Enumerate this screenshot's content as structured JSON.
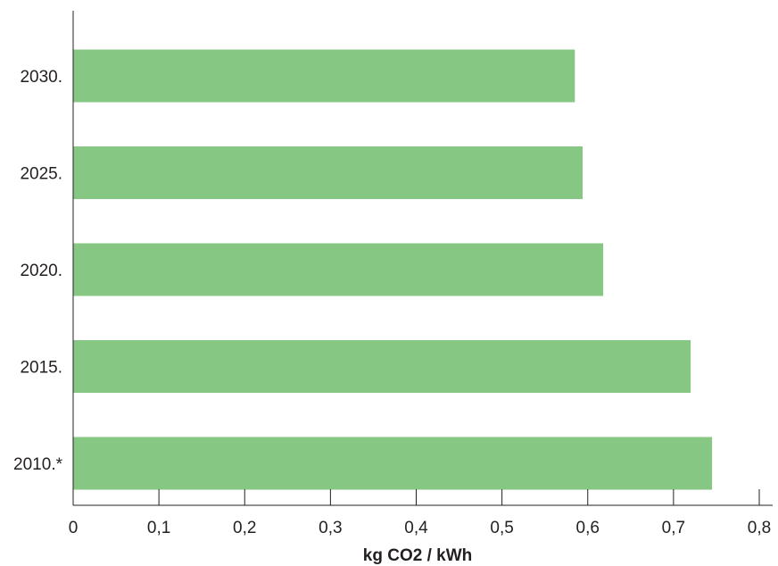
{
  "chart_data": {
    "type": "bar",
    "orientation": "horizontal",
    "categories": [
      "2030.",
      "2025.",
      "2020.",
      "2015.",
      "2010.*"
    ],
    "values": [
      0.585,
      0.594,
      0.618,
      0.72,
      0.745
    ],
    "xlabel": "kg CO2 / kWh",
    "ylabel": "",
    "xlim": [
      0,
      0.8
    ],
    "xticks": [
      "0",
      "0,1",
      "0,2",
      "0,3",
      "0,4",
      "0,5",
      "0,6",
      "0,7",
      "0,8"
    ],
    "bar_color": "#86c883",
    "grid": false,
    "legend": "none"
  }
}
